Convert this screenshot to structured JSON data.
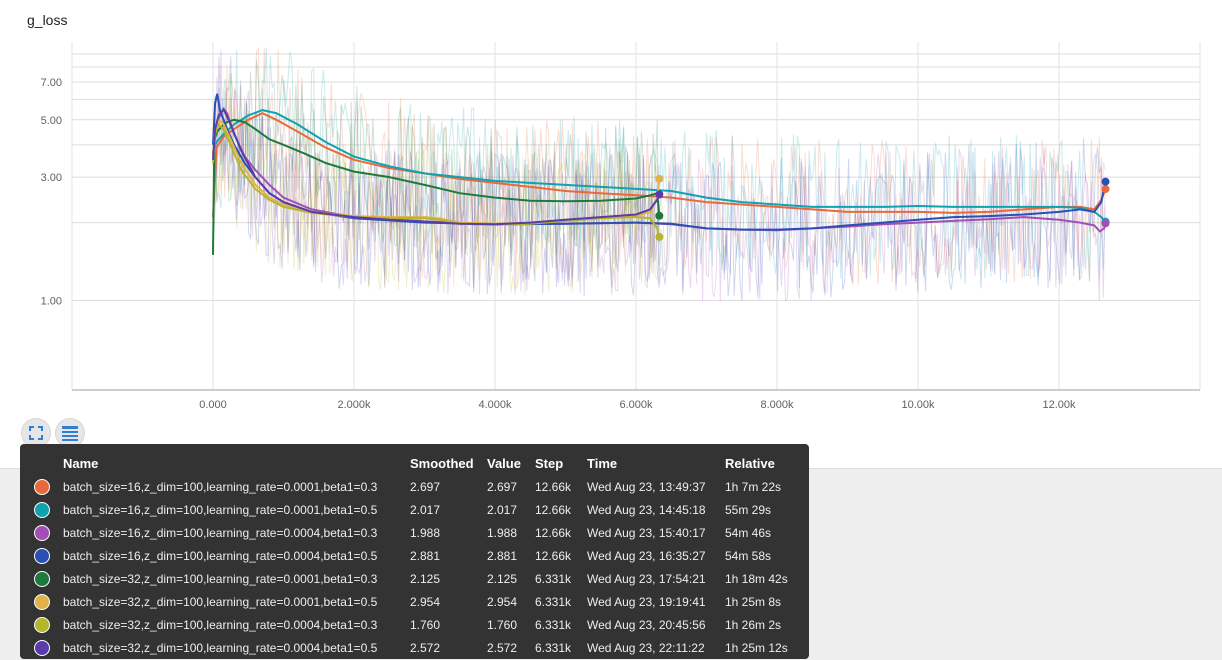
{
  "title": "g_loss",
  "icons": {
    "expand": "fullscreen-icon",
    "data": "list-icon"
  },
  "tooltip": {
    "headers": {
      "name": "Name",
      "smoothed": "Smoothed",
      "value": "Value",
      "step": "Step",
      "time": "Time",
      "relative": "Relative"
    },
    "rows": [
      {
        "name": "batch_size=16,z_dim=100,learning_rate=0.0001,beta1=0.3",
        "smoothed": "2.697",
        "value": "2.697",
        "step": "12.66k",
        "time": "Wed Aug 23, 13:49:37",
        "relative": "1h 7m 22s",
        "color": "#e8693c"
      },
      {
        "name": "batch_size=16,z_dim=100,learning_rate=0.0001,beta1=0.5",
        "smoothed": "2.017",
        "value": "2.017",
        "step": "12.66k",
        "time": "Wed Aug 23, 14:45:18",
        "relative": "55m 29s",
        "color": "#10a2ae"
      },
      {
        "name": "batch_size=16,z_dim=100,learning_rate=0.0004,beta1=0.3",
        "smoothed": "1.988",
        "value": "1.988",
        "step": "12.66k",
        "time": "Wed Aug 23, 15:40:17",
        "relative": "54m 46s",
        "color": "#a14fb6"
      },
      {
        "name": "batch_size=16,z_dim=100,learning_rate=0.0004,beta1=0.5",
        "smoothed": "2.881",
        "value": "2.881",
        "step": "12.66k",
        "time": "Wed Aug 23, 16:35:27",
        "relative": "54m 58s",
        "color": "#2a4fb5"
      },
      {
        "name": "batch_size=32,z_dim=100,learning_rate=0.0001,beta1=0.3",
        "smoothed": "2.125",
        "value": "2.125",
        "step": "6.331k",
        "time": "Wed Aug 23, 17:54:21",
        "relative": "1h 18m 42s",
        "color": "#1c7a3c"
      },
      {
        "name": "batch_size=32,z_dim=100,learning_rate=0.0001,beta1=0.5",
        "smoothed": "2.954",
        "value": "2.954",
        "step": "6.331k",
        "time": "Wed Aug 23, 19:19:41",
        "relative": "1h 25m 8s",
        "color": "#e0b24a"
      },
      {
        "name": "batch_size=32,z_dim=100,learning_rate=0.0004,beta1=0.3",
        "smoothed": "1.760",
        "value": "1.760",
        "step": "6.331k",
        "time": "Wed Aug 23, 20:45:56",
        "relative": "1h 26m 2s",
        "color": "#b4b62c"
      },
      {
        "name": "batch_size=32,z_dim=100,learning_rate=0.0004,beta1=0.5",
        "smoothed": "2.572",
        "value": "2.572",
        "step": "6.331k",
        "time": "Wed Aug 23, 22:11:22",
        "relative": "1h 25m 12s",
        "color": "#5a3bab"
      }
    ]
  },
  "chart_data": {
    "type": "line",
    "title": "g_loss",
    "xlabel": "",
    "ylabel": "",
    "yscale": "log",
    "xlim": [
      -2000,
      14000
    ],
    "ylim": [
      0.45,
      10
    ],
    "x_ticks": [
      0,
      2000,
      4000,
      6000,
      8000,
      10000,
      12000
    ],
    "x_tick_labels": [
      "0.000",
      "2.000k",
      "4.000k",
      "6.000k",
      "8.000k",
      "10.00k",
      "12.00k"
    ],
    "y_ticks": [
      1.0,
      3.0,
      5.0,
      7.0
    ],
    "y_tick_labels": [
      "1.00",
      "3.00",
      "5.00",
      "7.00"
    ],
    "y_minor_gridlines": [
      2.0,
      4.0,
      6.0,
      8.0,
      9.0
    ],
    "grid": true,
    "series": [
      {
        "name": "batch_size=16,z_dim=100,learning_rate=0.0001,beta1=0.3",
        "color": "#e8693c",
        "x": [
          0,
          50,
          150,
          300,
          500,
          700,
          900,
          1200,
          1600,
          2000,
          2500,
          3000,
          3500,
          4000,
          4500,
          5000,
          5500,
          6000,
          6500,
          7000,
          7500,
          8000,
          8500,
          9000,
          9500,
          10000,
          10500,
          11000,
          11500,
          12000,
          12300,
          12500,
          12600,
          12660
        ],
        "y": [
          2.1,
          3.9,
          4.3,
          4.6,
          5.0,
          5.3,
          5.0,
          4.5,
          3.9,
          3.5,
          3.25,
          3.1,
          2.95,
          2.85,
          2.75,
          2.65,
          2.6,
          2.55,
          2.5,
          2.4,
          2.35,
          2.3,
          2.25,
          2.2,
          2.2,
          2.2,
          2.18,
          2.2,
          2.25,
          2.3,
          2.3,
          2.25,
          2.45,
          2.697
        ]
      },
      {
        "name": "batch_size=16,z_dim=100,learning_rate=0.0001,beta1=0.5",
        "color": "#10a2ae",
        "x": [
          0,
          50,
          150,
          300,
          500,
          700,
          900,
          1200,
          1600,
          2000,
          2500,
          3000,
          3500,
          4000,
          4500,
          5000,
          5500,
          6000,
          6500,
          7000,
          7500,
          8000,
          8500,
          9000,
          9500,
          10000,
          10500,
          11000,
          11500,
          12000,
          12300,
          12500,
          12600,
          12660
        ],
        "y": [
          3.8,
          4.1,
          4.4,
          4.8,
          5.2,
          5.45,
          5.3,
          4.8,
          4.1,
          3.6,
          3.3,
          3.1,
          3.0,
          2.9,
          2.85,
          2.8,
          2.75,
          2.7,
          2.65,
          2.5,
          2.4,
          2.35,
          2.3,
          2.3,
          2.3,
          2.32,
          2.3,
          2.3,
          2.3,
          2.3,
          2.28,
          2.2,
          2.1,
          2.017
        ]
      },
      {
        "name": "batch_size=16,z_dim=100,learning_rate=0.0004,beta1=0.3",
        "color": "#a14fb6",
        "x": [
          0,
          50,
          100,
          150,
          200,
          300,
          450,
          600,
          800,
          1000,
          1400,
          2000,
          3000,
          4000,
          5000,
          6000,
          6500,
          7000,
          7500,
          8000,
          8500,
          9000,
          9500,
          10000,
          10500,
          11000,
          11500,
          12000,
          12300,
          12500,
          12580,
          12640,
          12660
        ],
        "y": [
          3.7,
          4.8,
          5.2,
          5.5,
          5.3,
          4.4,
          3.6,
          3.2,
          2.8,
          2.5,
          2.25,
          2.1,
          2.02,
          1.97,
          1.98,
          2.0,
          1.97,
          1.9,
          1.88,
          1.87,
          1.9,
          1.93,
          1.97,
          2.0,
          2.03,
          2.06,
          2.1,
          2.05,
          2.0,
          1.95,
          1.85,
          1.9,
          1.988
        ]
      },
      {
        "name": "batch_size=16,z_dim=100,learning_rate=0.0004,beta1=0.5",
        "color": "#2a4fb5",
        "x": [
          0,
          30,
          60,
          100,
          150,
          200,
          300,
          450,
          600,
          800,
          1000,
          1400,
          2000,
          3000,
          4000,
          5000,
          6000,
          6500,
          7000,
          7500,
          8000,
          8500,
          9000,
          9500,
          10000,
          10500,
          11000,
          11500,
          12000,
          12300,
          12500,
          12600,
          12660
        ],
        "y": [
          4.0,
          5.8,
          6.3,
          5.4,
          5.0,
          4.6,
          4.0,
          3.4,
          3.0,
          2.6,
          2.4,
          2.2,
          2.08,
          2.0,
          1.97,
          1.98,
          2.0,
          1.98,
          1.9,
          1.88,
          1.88,
          1.9,
          1.95,
          2.0,
          2.05,
          2.1,
          2.12,
          2.15,
          2.2,
          2.25,
          2.2,
          2.4,
          2.881
        ]
      },
      {
        "name": "batch_size=32,z_dim=100,learning_rate=0.0001,beta1=0.3",
        "color": "#1c7a3c",
        "x": [
          0,
          20,
          60,
          120,
          200,
          300,
          450,
          600,
          800,
          1000,
          1300,
          1600,
          2000,
          2500,
          3000,
          3500,
          4000,
          4500,
          5000,
          5500,
          6000,
          6200,
          6300,
          6331
        ],
        "y": [
          1.5,
          4.2,
          4.5,
          4.7,
          4.9,
          5.0,
          4.9,
          4.6,
          4.2,
          4.0,
          3.7,
          3.4,
          3.15,
          3.0,
          2.8,
          2.6,
          2.5,
          2.43,
          2.42,
          2.43,
          2.48,
          2.55,
          2.6,
          2.125
        ]
      },
      {
        "name": "batch_size=32,z_dim=100,learning_rate=0.0001,beta1=0.5",
        "color": "#e0b24a",
        "x": [
          0,
          30,
          80,
          150,
          250,
          400,
          600,
          800,
          1000,
          1400,
          2000,
          2500,
          3000,
          3200,
          3500,
          4000,
          4500,
          5000,
          5500,
          6000,
          6200,
          6300,
          6331
        ],
        "y": [
          3.6,
          4.6,
          5.0,
          4.8,
          4.2,
          3.4,
          2.8,
          2.5,
          2.35,
          2.2,
          2.12,
          2.1,
          2.1,
          2.08,
          2.0,
          1.98,
          2.0,
          2.05,
          2.1,
          2.12,
          2.2,
          2.5,
          2.954
        ]
      },
      {
        "name": "batch_size=32,z_dim=100,learning_rate=0.0004,beta1=0.3",
        "color": "#b4b62c",
        "x": [
          0,
          30,
          80,
          150,
          250,
          400,
          600,
          800,
          1000,
          1400,
          2000,
          2500,
          3000,
          3200,
          3500,
          4000,
          4500,
          5000,
          5500,
          6000,
          6200,
          6300,
          6331
        ],
        "y": [
          3.4,
          4.4,
          4.8,
          4.6,
          4.0,
          3.2,
          2.7,
          2.45,
          2.3,
          2.18,
          2.1,
          2.08,
          2.08,
          2.05,
          1.98,
          1.96,
          1.98,
          2.03,
          2.08,
          2.1,
          2.08,
          1.9,
          1.76
        ]
      },
      {
        "name": "batch_size=32,z_dim=100,learning_rate=0.0004,beta1=0.5",
        "color": "#5a3bab",
        "x": [
          0,
          30,
          80,
          150,
          250,
          400,
          600,
          800,
          1000,
          1400,
          2000,
          2500,
          3000,
          3500,
          4000,
          4500,
          5000,
          5500,
          6000,
          6200,
          6300,
          6331
        ],
        "y": [
          3.5,
          4.6,
          5.2,
          5.5,
          4.8,
          3.8,
          3.0,
          2.6,
          2.4,
          2.2,
          2.1,
          2.05,
          2.02,
          1.98,
          1.97,
          2.0,
          2.05,
          2.1,
          2.15,
          2.25,
          2.45,
          2.572
        ]
      }
    ]
  }
}
